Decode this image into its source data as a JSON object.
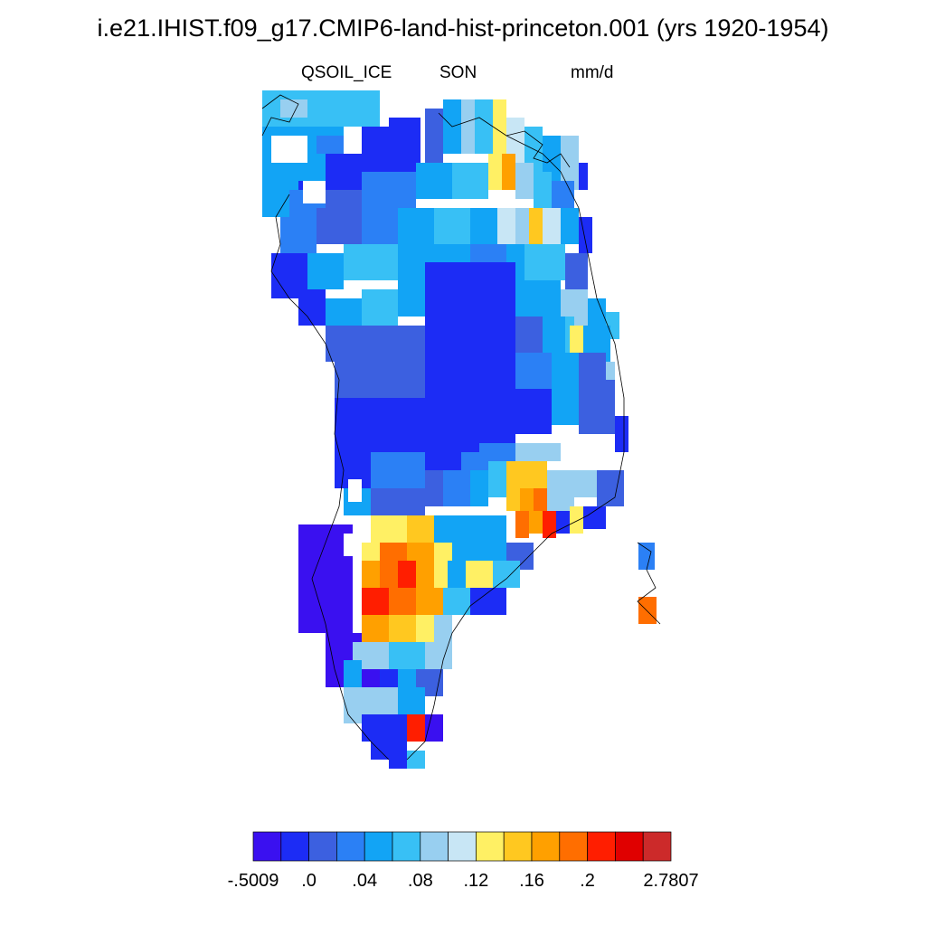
{
  "figure": {
    "title": "i.e21.IHIST.f09_g17.CMIP6-land-hist-princeton.001 (yrs 1920-1954)",
    "variable": "QSOIL_ICE",
    "season": "SON",
    "units": "mm/d"
  },
  "colorbar": {
    "colors": [
      "#3a10f0",
      "#1c2cf5",
      "#3c60e0",
      "#2b80f5",
      "#12a4f5",
      "#38c0f5",
      "#98cff0",
      "#c8e6f5",
      "#fff064",
      "#ffc820",
      "#ffa000",
      "#ff6e00",
      "#ff1e00",
      "#e00000",
      "#cc2a2a"
    ],
    "tick_labels": [
      "-.5009",
      ".0",
      ".04",
      ".08",
      ".12",
      ".16",
      ".2",
      "2.7807"
    ]
  },
  "map_field": {
    "palette": [
      "#3a10f0",
      "#1c2cf5",
      "#3c60e0",
      "#2b80f5",
      "#12a4f5",
      "#38c0f5",
      "#98cff0",
      "#c8e6f5",
      "#fff064",
      "#ffc820",
      "#ffa000",
      "#ff6e00",
      "#ff1e00",
      "#e00000",
      "#cc2a2a"
    ],
    "grid_notes": "values are colour-class indices (0 = lowest class, 14 = highest)"
  }
}
